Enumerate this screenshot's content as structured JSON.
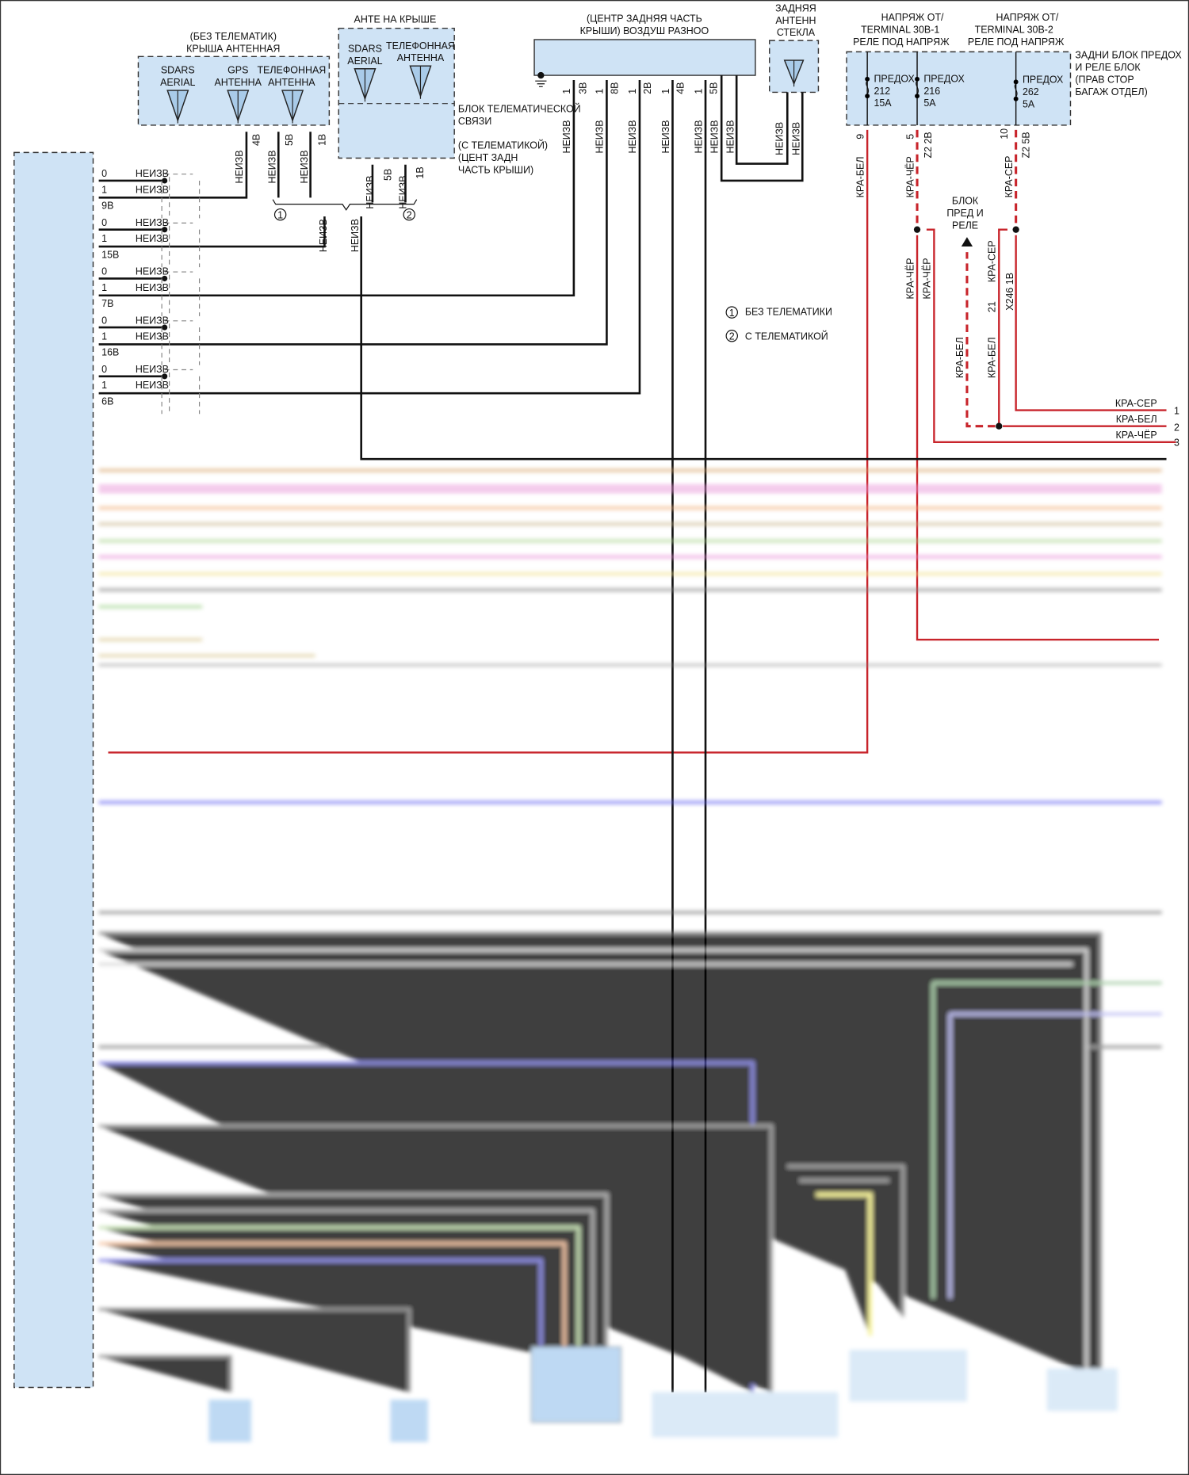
{
  "roof_antenna_no_telematics": {
    "title1": "(БЕЗ ТЕЛЕМАТИК)",
    "title2": "КРЫША АНТЕННАЯ",
    "sdars": [
      "SDARS",
      "AERIAL"
    ],
    "gps": [
      "GPS",
      "АНТЕННА"
    ],
    "phone": [
      "ТЕЛЕФОННАЯ",
      "АНТЕННА"
    ],
    "pins": [
      {
        "num": "1",
        "id": "4B"
      },
      {
        "num": "1",
        "id": "5B"
      },
      {
        "num": "1",
        "id": "1B"
      }
    ]
  },
  "roof_antenna_telematics": {
    "title": "АНТЕ НА КРЫШЕ",
    "sdars": [
      "SDARS",
      "AERIAL"
    ],
    "phone": [
      "ТЕЛЕФОННАЯ",
      "АНТЕННА"
    ],
    "module_label": [
      "БЛОК ТЕЛЕМАТИЧЕСКОЙ",
      "СВЯЗИ"
    ],
    "location": [
      "(С ТЕЛЕМАТИКОЙ)",
      "(ЦЕНТ ЗАДН",
      "ЧАСТЬ КРЫШИ)"
    ],
    "pins": [
      {
        "num": "1",
        "id": "5B"
      },
      {
        "num": "1",
        "id": "1B"
      }
    ]
  },
  "air_module": {
    "title1": "(ЦЕНТР ЗАДНЯЯ ЧАСТЬ",
    "title2": "КРЫШИ) ВОЗДУШ РАЗНОО",
    "pins": [
      {
        "num": "1",
        "id": "3B"
      },
      {
        "num": "1",
        "id": "8B"
      },
      {
        "num": "1",
        "id": "2B"
      },
      {
        "num": "1",
        "id": "4B"
      },
      {
        "num": "1",
        "id": "5B"
      }
    ]
  },
  "rear_glass_antenna": {
    "title": [
      "ЗАДНЯЯ",
      "АНТЕНН",
      "СТЕКЛА"
    ]
  },
  "fuse_block": {
    "supply1": [
      "НАПРЯЖ ОТ/",
      "TERMINAL 30B-1",
      "РЕЛЕ ПОД НАПРЯЖ"
    ],
    "supply2": [
      "НАПРЯЖ ОТ/",
      "TERMINAL 30B-2",
      "РЕЛЕ ПОД НАПРЯЖ"
    ],
    "title": [
      "ЗАДНИ БЛОК ПРЕДОХ",
      "И РЕЛЕ БЛОК",
      "(ПРАВ СТОР",
      "БАГАЖ ОТДЕЛ)"
    ],
    "fuses": [
      {
        "label": "ПРЕДОХ",
        "num": "212",
        "rating": "15A",
        "pin": "9",
        "wire": "КРА-БЕЛ"
      },
      {
        "label": "ПРЕДОХ",
        "num": "216",
        "rating": "5A",
        "pin": "5",
        "conn": "Z2 2B",
        "wire": "КРА-ЧЁР"
      },
      {
        "label": "ПРЕДОХ",
        "num": "262",
        "rating": "5A",
        "pin": "10",
        "conn": "Z2 5B",
        "wire": "КРА-СЕР"
      }
    ]
  },
  "relay_block": [
    "БЛОК",
    "ПРЕД И",
    "РЕЛЕ"
  ],
  "splice": {
    "pin": "21",
    "conn": "X246 1B"
  },
  "wire_unknown": "НЕИЗВ",
  "wire_colors": {
    "kra_cher": "КРА-ЧЁР",
    "kra_bel": "КРА-БЕЛ",
    "kra_ser": "КРА-СЕР"
  },
  "right_connector": [
    {
      "wire": "КРА-СЕР",
      "pin": "1"
    },
    {
      "wire": "КРА-БЕЛ",
      "pin": "2"
    },
    {
      "wire": "КРА-ЧЁР",
      "pin": "3"
    }
  ],
  "left_groups": [
    {
      "pins": [
        "0",
        "1"
      ],
      "id": "9B"
    },
    {
      "pins": [
        "0",
        "1"
      ],
      "id": "15B"
    },
    {
      "pins": [
        "0",
        "1"
      ],
      "id": "7B"
    },
    {
      "pins": [
        "0",
        "1"
      ],
      "id": "16B"
    },
    {
      "pins": [
        "0",
        "1"
      ],
      "id": "6B"
    }
  ],
  "legend": [
    {
      "mark": "1",
      "text": "БЕЗ ТЕЛЕМАТИКИ"
    },
    {
      "mark": "2",
      "text": "С ТЕЛЕМАТИКОЙ"
    }
  ],
  "colors": {
    "red_wire": "#c8242b",
    "module_fill": "#cfe3f5",
    "wire": "#111111"
  }
}
